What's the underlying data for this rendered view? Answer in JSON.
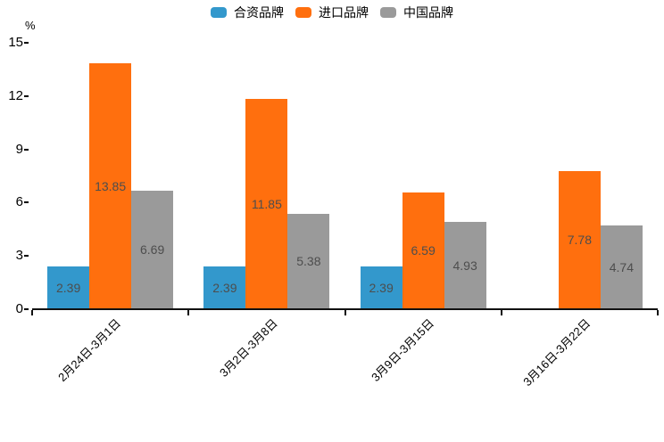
{
  "chart_data": {
    "type": "bar",
    "title": "",
    "xlabel": "",
    "ylabel": "%",
    "categories": [
      "2月24日-3月1日",
      "3月2日-3月8日",
      "3月9日-3月15日",
      "3月16日-3月22日"
    ],
    "series": [
      {
        "name": "合资品牌",
        "color": "#3398CC",
        "values": [
          2.39,
          2.39,
          2.39,
          null
        ]
      },
      {
        "name": "进口品牌",
        "color": "#FF6F0E",
        "values": [
          13.85,
          11.85,
          6.59,
          7.78
        ]
      },
      {
        "name": "中国品牌",
        "color": "#9A9A9A",
        "values": [
          6.69,
          5.38,
          4.93,
          4.74
        ]
      }
    ],
    "yticks": [
      0,
      3,
      6,
      9,
      12,
      15
    ],
    "ylim": [
      0,
      15
    ],
    "grid": false,
    "legend_position": "top-center",
    "value_labels": "inside-center",
    "value_label_color": "#4D4D4D",
    "axis_color": "#111111",
    "background_color": "#FFFFFF"
  }
}
